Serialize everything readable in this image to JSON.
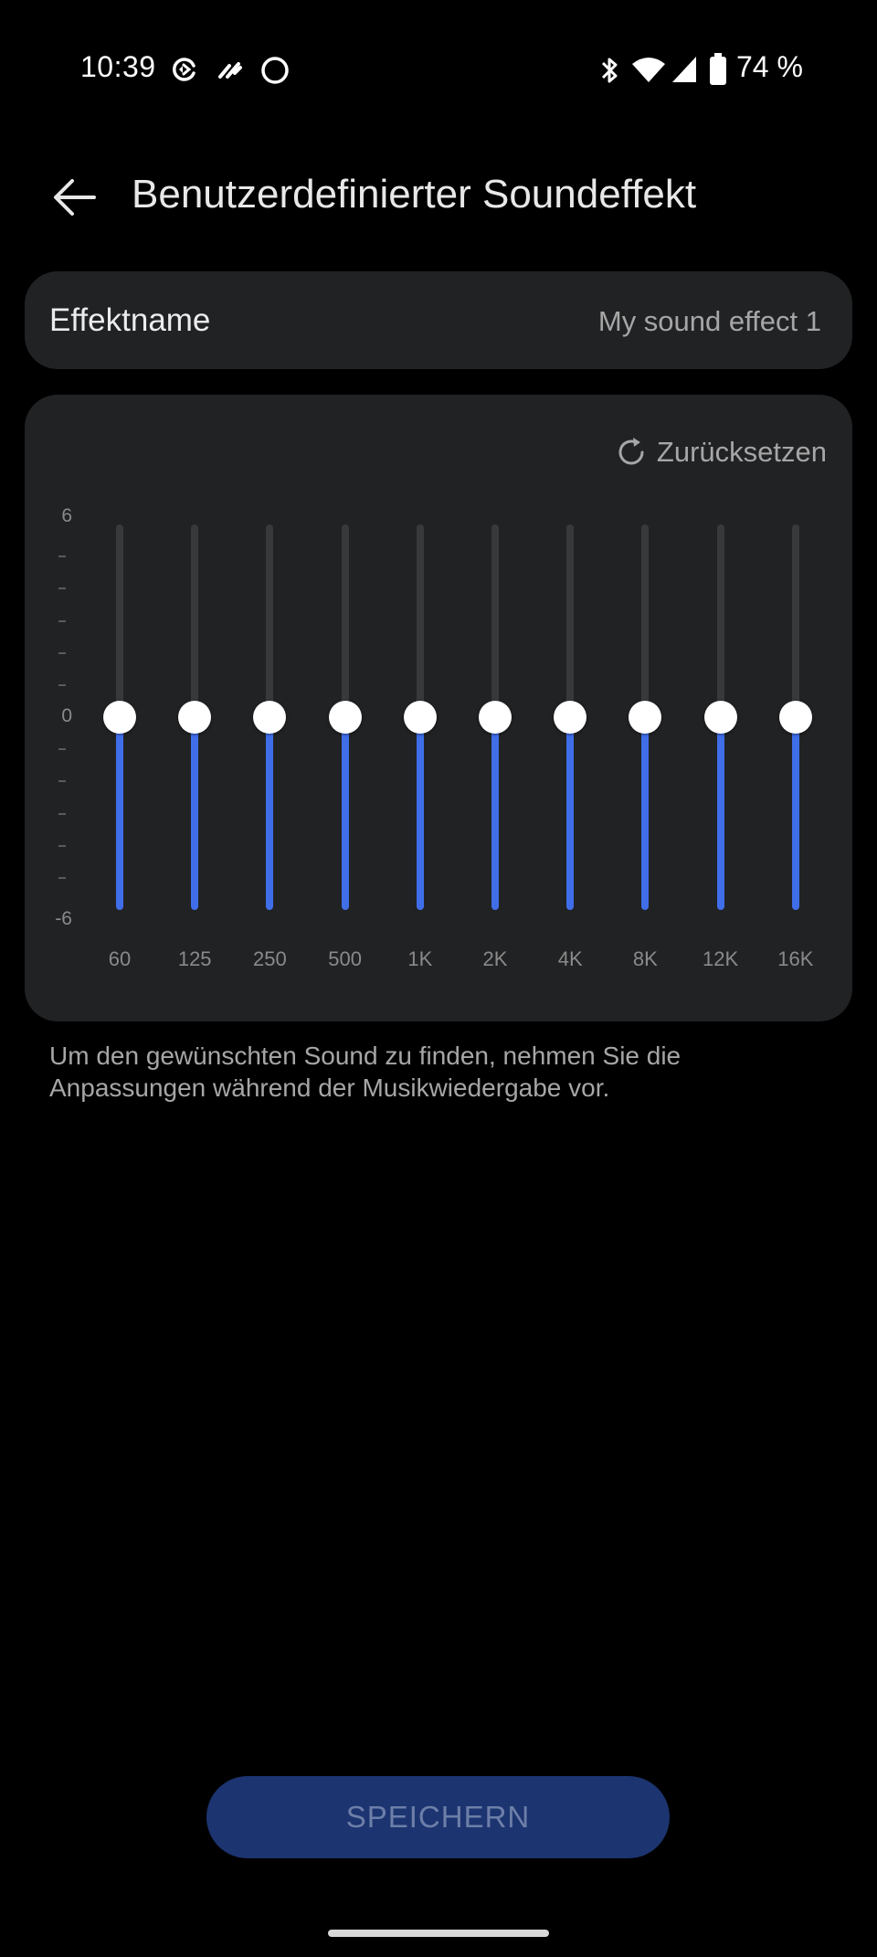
{
  "status_bar": {
    "time": "10:39",
    "battery": "74 %",
    "left_icons": [
      "data-saver-icon",
      "link-icon",
      "circle-icon"
    ],
    "right_icons": [
      "bluetooth-icon",
      "wifi-icon",
      "signal-icon",
      "battery-icon"
    ]
  },
  "header": {
    "title": "Benutzerdefinierter Soundeffekt",
    "back_icon": "arrow-left-icon"
  },
  "effect": {
    "label": "Effektname",
    "value": "My sound effect 1"
  },
  "equalizer": {
    "reset_label": "Zurücksetzen",
    "reset_icon": "refresh-icon",
    "scale": {
      "max": "6",
      "zero": "0",
      "min": "-6"
    },
    "range": [
      -6,
      6
    ],
    "bands": [
      {
        "label": "60",
        "gain": 0
      },
      {
        "label": "125",
        "gain": 0
      },
      {
        "label": "250",
        "gain": 0
      },
      {
        "label": "500",
        "gain": 0
      },
      {
        "label": "1K",
        "gain": 0
      },
      {
        "label": "2K",
        "gain": 0
      },
      {
        "label": "4K",
        "gain": 0
      },
      {
        "label": "8K",
        "gain": 0
      },
      {
        "label": "12K",
        "gain": 0
      },
      {
        "label": "16K",
        "gain": 0
      }
    ],
    "colors": {
      "fill": "#3f6ee8",
      "track": "#38393b",
      "knob": "#ffffff"
    }
  },
  "hint": "Um den gewünschten Sound zu finden, nehmen Sie die Anpassungen während der Musikwiedergabe vor.",
  "save_button": {
    "label": "SPEICHERN",
    "color": "#1c3470"
  }
}
